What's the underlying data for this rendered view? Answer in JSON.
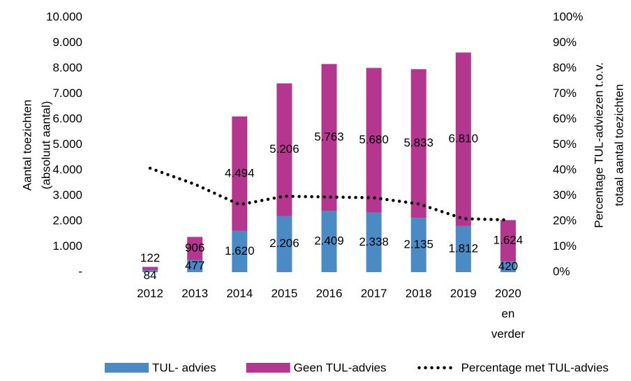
{
  "chart_data": {
    "type": "bar",
    "categories": [
      "2012",
      "2013",
      "2014",
      "2015",
      "2016",
      "2017",
      "2018",
      "2019",
      "2020 en verder"
    ],
    "series": [
      {
        "name": "TUL- advies",
        "color": "#4a8bc6",
        "values": [
          84,
          477,
          1620,
          2206,
          2409,
          2338,
          2135,
          1812,
          420
        ],
        "value_labels": [
          "84",
          "477",
          "1.620",
          "2.206",
          "2.409",
          "2.338",
          "2.135",
          "1.812",
          "420"
        ]
      },
      {
        "name": "Geen TUL-advies",
        "color": "#b5368f",
        "values": [
          122,
          906,
          4494,
          5206,
          5763,
          5680,
          5833,
          6810,
          1624
        ],
        "value_labels": [
          "122",
          "906",
          "4.494",
          "5.206",
          "5.763",
          "5.680",
          "5.833",
          "6.810",
          "1.624"
        ]
      },
      {
        "name": "Percentage met TUL-advies",
        "color": "#000000",
        "axis": "y2",
        "values": [
          40.8,
          34.5,
          26.5,
          29.8,
          29.5,
          29.2,
          26.8,
          21.0,
          20.5
        ]
      }
    ],
    "y_label": [
      "Aantal toezichten",
      "(absoluut aantal)"
    ],
    "y2_label": [
      "Percentage TUL-adviezen t.o.v.",
      "totaal aantal toezichten"
    ],
    "ylim": [
      0,
      10000
    ],
    "yticks": [
      {
        "value": 0,
        "label": "-"
      },
      {
        "value": 1000,
        "label": "1.000"
      },
      {
        "value": 2000,
        "label": "2.000"
      },
      {
        "value": 3000,
        "label": "3.000"
      },
      {
        "value": 4000,
        "label": "4.000"
      },
      {
        "value": 5000,
        "label": "5.000"
      },
      {
        "value": 6000,
        "label": "6.000"
      },
      {
        "value": 7000,
        "label": "7.000"
      },
      {
        "value": 8000,
        "label": "8.000"
      },
      {
        "value": 9000,
        "label": "9.000"
      },
      {
        "value": 10000,
        "label": "10.000"
      }
    ],
    "y2lim": [
      0,
      100
    ],
    "y2ticks": [
      {
        "value": 0,
        "label": "0%"
      },
      {
        "value": 10,
        "label": "10%"
      },
      {
        "value": 20,
        "label": "20%"
      },
      {
        "value": 30,
        "label": "30%"
      },
      {
        "value": 40,
        "label": "40%"
      },
      {
        "value": 50,
        "label": "50%"
      },
      {
        "value": 60,
        "label": "60%"
      },
      {
        "value": 70,
        "label": "70%"
      },
      {
        "value": 80,
        "label": "80%"
      },
      {
        "value": 90,
        "label": "90%"
      },
      {
        "value": 100,
        "label": "100%"
      }
    ]
  }
}
